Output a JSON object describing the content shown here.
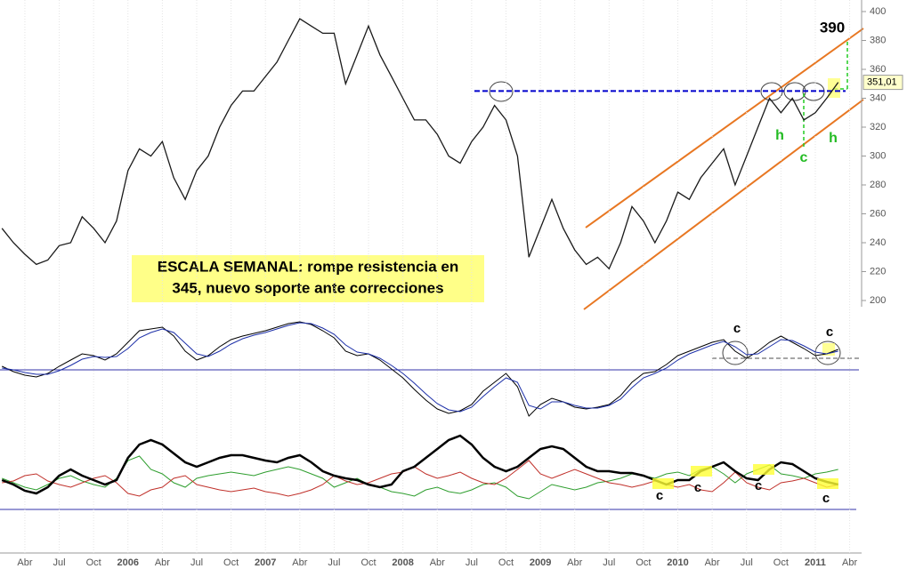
{
  "chart_data": {
    "type": "line",
    "categories": [
      null,
      null,
      "Abr",
      null,
      null,
      "Jul",
      null,
      null,
      "Oct",
      null,
      null,
      "2006",
      null,
      null,
      "Abr",
      null,
      null,
      "Jul",
      null,
      null,
      "Oct",
      null,
      null,
      "2007",
      null,
      null,
      "Abr",
      null,
      null,
      "Jul",
      null,
      null,
      "Oct",
      null,
      null,
      "2008",
      null,
      null,
      "Abr",
      null,
      null,
      "Jul",
      null,
      null,
      "Oct",
      null,
      null,
      "2009",
      null,
      null,
      "Abr",
      null,
      null,
      "Jul",
      null,
      null,
      "Oct",
      null,
      null,
      "2010",
      null,
      null,
      "Abr",
      null,
      null,
      "Jul",
      null,
      null,
      "Oct",
      null,
      null,
      "2011",
      null,
      null,
      "Abr"
    ],
    "series": [
      {
        "color": "#1a1a1a",
        "values": [
          250,
          240,
          232,
          225,
          228,
          238,
          240,
          258,
          250,
          240,
          255,
          290,
          305,
          300,
          310,
          285,
          270,
          290,
          300,
          320,
          335,
          345,
          345,
          355,
          365,
          380,
          395,
          390,
          385,
          385,
          350,
          370,
          390,
          370,
          355,
          340,
          325,
          325,
          315,
          300,
          295,
          310,
          320,
          335,
          325,
          300,
          230,
          250,
          270,
          250,
          235,
          225,
          230,
          222,
          240,
          265,
          255,
          240,
          255,
          275,
          270,
          285,
          295,
          305,
          280,
          300,
          320,
          340,
          330,
          340,
          325,
          330,
          340,
          351.01,
          null
        ]
      }
    ],
    "ylim": [
      200,
      400
    ],
    "yticks": [
      200,
      220,
      240,
      260,
      280,
      300,
      320,
      340,
      360,
      380,
      400
    ],
    "resistance": {
      "value": 345,
      "color": "#0000cc"
    },
    "last_price": {
      "value": 351.01,
      "label": "351,01"
    },
    "text_box": [
      "ESCALA SEMANAL: rompe resistencia en",
      "345, nuevo soporte ante correcciones"
    ],
    "annotations": [
      "390",
      "h",
      "c",
      "h",
      "c",
      "c",
      "c",
      "c",
      "c",
      "c"
    ],
    "macd": {
      "ylim": [
        -55,
        60
      ],
      "series": [
        {
          "color": "#000000",
          "values": [
            4,
            -2,
            -6,
            -8,
            -4,
            4,
            11,
            18,
            16,
            11,
            18,
            31,
            44,
            46,
            48,
            38,
            21,
            11,
            16,
            26,
            34,
            38,
            41,
            44,
            48,
            52,
            54,
            51,
            44,
            36,
            21,
            16,
            18,
            11,
            1,
            -9,
            -22,
            -34,
            -44,
            -49,
            -46,
            -39,
            -24,
            -14,
            -4,
            -19,
            -52,
            -39,
            -32,
            -36,
            -42,
            -44,
            -42,
            -39,
            -29,
            -14,
            -4,
            -2,
            6,
            16,
            21,
            26,
            31,
            34,
            21,
            13,
            21,
            31,
            38,
            31,
            24,
            16,
            18,
            23,
            null
          ]
        },
        {
          "color": "#1c2fa8",
          "values": [
            2,
            0,
            -3,
            -5,
            -5,
            -1,
            5,
            12,
            15,
            14,
            15,
            24,
            36,
            42,
            46,
            42,
            30,
            18,
            15,
            21,
            29,
            35,
            39,
            42,
            46,
            50,
            53,
            52,
            47,
            40,
            28,
            20,
            18,
            13,
            5,
            -4,
            -15,
            -27,
            -38,
            -45,
            -47,
            -42,
            -30,
            -19,
            -9,
            -14,
            -40,
            -44,
            -36,
            -36,
            -40,
            -43,
            -43,
            -40,
            -33,
            -20,
            -9,
            -4,
            2,
            11,
            18,
            23,
            28,
            32,
            26,
            17,
            18,
            26,
            34,
            33,
            27,
            20,
            18,
            21,
            null
          ]
        }
      ]
    },
    "dmi": {
      "ylim": [
        0,
        90
      ],
      "series": [
        {
          "color": "#2e9e2e",
          "values": [
            35,
            30,
            25,
            22,
            28,
            35,
            38,
            32,
            28,
            25,
            35,
            55,
            60,
            45,
            40,
            30,
            25,
            35,
            38,
            40,
            42,
            40,
            38,
            42,
            45,
            48,
            45,
            40,
            35,
            25,
            30,
            35,
            28,
            25,
            20,
            18,
            15,
            22,
            25,
            20,
            18,
            22,
            28,
            30,
            25,
            15,
            12,
            20,
            28,
            25,
            22,
            25,
            30,
            32,
            35,
            40,
            38,
            35,
            40,
            42,
            38,
            45,
            48,
            40,
            30,
            40,
            45,
            50,
            40,
            38,
            35,
            40,
            42,
            45,
            null
          ]
        },
        {
          "color": "#c0302a",
          "values": [
            30,
            32,
            38,
            40,
            32,
            28,
            25,
            30,
            35,
            38,
            30,
            18,
            15,
            22,
            25,
            35,
            38,
            28,
            25,
            22,
            20,
            22,
            24,
            20,
            18,
            15,
            18,
            22,
            28,
            38,
            32,
            28,
            30,
            35,
            40,
            42,
            48,
            40,
            35,
            38,
            42,
            35,
            30,
            28,
            35,
            45,
            55,
            40,
            35,
            40,
            45,
            40,
            35,
            30,
            28,
            25,
            28,
            32,
            28,
            25,
            28,
            22,
            20,
            30,
            42,
            30,
            25,
            22,
            30,
            32,
            35,
            30,
            25,
            28,
            null
          ]
        },
        {
          "color": "#000000",
          "values": [
            33,
            28,
            21,
            18,
            25,
            38,
            45,
            38,
            33,
            28,
            33,
            58,
            73,
            78,
            73,
            63,
            53,
            48,
            53,
            58,
            61,
            61,
            58,
            55,
            53,
            58,
            61,
            53,
            43,
            38,
            35,
            33,
            28,
            25,
            28,
            43,
            48,
            58,
            68,
            78,
            83,
            73,
            58,
            48,
            43,
            48,
            58,
            68,
            71,
            68,
            58,
            48,
            43,
            43,
            41,
            41,
            38,
            33,
            28,
            33,
            33,
            43,
            48,
            53,
            43,
            35,
            33,
            45,
            53,
            51,
            43,
            35,
            31,
            28,
            null
          ]
        }
      ]
    }
  }
}
